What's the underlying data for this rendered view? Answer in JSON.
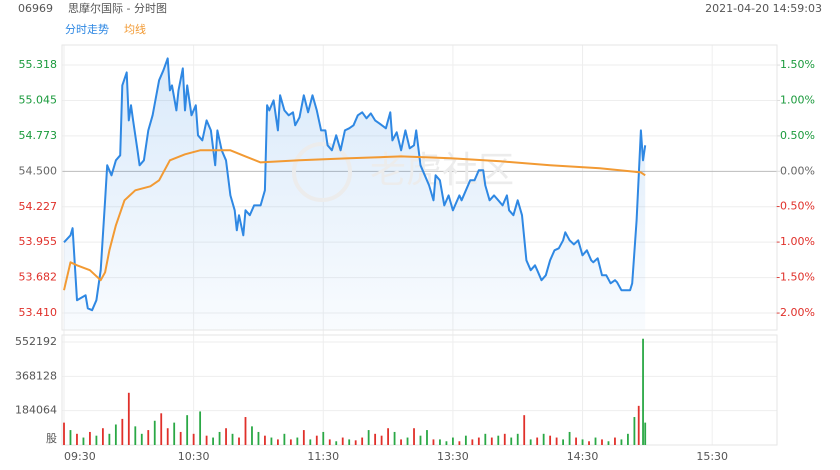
{
  "chart_data": [
    {
      "type": "line",
      "code": "06969",
      "title": "思摩尔国际 - 分时图",
      "timestamp": "2021-04-20 14:59:03",
      "watermark": "老虎社区",
      "xlim": [
        0,
        330
      ],
      "xticks": [
        {
          "value": 0,
          "label": "09:30"
        },
        {
          "value": 60,
          "label": "10:30"
        },
        {
          "value": 120,
          "label": "11:30"
        },
        {
          "value": 180,
          "label": "13:30"
        },
        {
          "value": 240,
          "label": "14:30"
        },
        {
          "value": 300,
          "label": "15:30"
        }
      ],
      "ylim": [
        53.279,
        55.472
      ],
      "yticks": [
        55.318,
        55.045,
        54.773,
        {
          "value": 54.5,
          "label": "54.500"
        },
        54.227,
        53.955,
        53.682,
        {
          "value": 53.41,
          "label": "53.410"
        }
      ],
      "y2lim": [
        -2.24,
        1.783
      ],
      "y2ticks": [
        {
          "value": 1.5,
          "label": "1.50%"
        },
        {
          "value": 1,
          "label": "1.00%"
        },
        {
          "value": 0.5,
          "label": "0.50%"
        },
        {
          "value": 0,
          "label": "0.00%"
        },
        {
          "value": -0.5,
          "label": "-0.50%"
        },
        {
          "value": -1,
          "label": "-1.00%"
        },
        {
          "value": -1.5,
          "label": "-1.50%"
        },
        {
          "value": -2,
          "label": "-2.00%"
        }
      ],
      "grid": true,
      "series": [
        {
          "name": "分时走势",
          "color": "#2f88e3",
          "fill": true,
          "x": [
            0,
            3,
            4,
            6,
            10,
            11,
            13,
            15,
            17,
            19,
            20,
            22,
            24,
            26,
            27,
            29,
            30,
            31,
            32,
            34,
            35,
            37,
            39,
            41,
            44,
            46,
            48,
            49,
            50,
            52,
            53,
            55,
            56,
            57,
            59,
            61,
            62,
            64,
            66,
            68,
            70,
            71,
            73,
            75,
            77,
            79,
            80,
            81,
            83,
            84,
            86,
            88,
            91,
            93,
            94,
            95,
            97,
            99,
            100,
            102,
            104,
            106,
            107,
            109,
            111,
            113,
            115,
            117,
            119,
            121,
            122,
            124,
            126,
            128,
            130,
            132,
            134,
            136,
            138,
            140,
            142,
            144,
            146,
            149,
            151,
            152,
            154,
            156,
            158,
            160,
            162,
            163,
            165,
            167,
            169,
            171,
            172,
            174,
            176,
            178,
            180,
            183,
            184,
            186,
            188,
            190,
            192,
            194,
            195,
            197,
            199,
            201,
            203,
            205,
            206,
            208,
            210,
            212,
            214,
            216,
            218,
            219,
            221,
            223,
            225,
            227,
            229,
            231,
            232,
            234,
            236,
            238,
            240,
            242,
            244,
            245,
            247,
            249,
            251,
            253,
            255,
            256,
            258,
            260,
            262,
            263,
            265,
            267,
            268,
            269
          ],
          "values": [
            53.954,
            54.008,
            54.062,
            53.508,
            53.546,
            53.446,
            53.431,
            53.508,
            53.739,
            54.277,
            54.546,
            54.469,
            54.585,
            54.623,
            55.161,
            55.261,
            54.892,
            55.008,
            54.892,
            54.662,
            54.546,
            54.585,
            54.815,
            54.931,
            55.2,
            55.277,
            55.369,
            55.123,
            55.161,
            54.969,
            55.123,
            55.292,
            54.969,
            55.161,
            54.931,
            55.008,
            54.777,
            54.738,
            54.892,
            54.815,
            54.546,
            54.815,
            54.662,
            54.585,
            54.315,
            54.2,
            54.046,
            54.162,
            54.008,
            54.2,
            54.162,
            54.238,
            54.238,
            54.354,
            55.008,
            54.969,
            55.046,
            54.815,
            55.085,
            54.969,
            54.931,
            54.954,
            54.854,
            54.915,
            55.085,
            54.954,
            55.085,
            54.969,
            54.815,
            54.815,
            54.7,
            54.662,
            54.777,
            54.662,
            54.815,
            54.831,
            54.854,
            54.931,
            54.954,
            54.908,
            54.946,
            54.892,
            54.869,
            54.831,
            54.954,
            54.738,
            54.8,
            54.662,
            54.815,
            54.677,
            54.7,
            54.815,
            54.546,
            54.469,
            54.392,
            54.277,
            54.469,
            54.431,
            54.238,
            54.315,
            54.2,
            54.315,
            54.277,
            54.354,
            54.431,
            54.431,
            54.508,
            54.508,
            54.392,
            54.277,
            54.315,
            54.277,
            54.238,
            54.315,
            54.2,
            54.162,
            54.277,
            54.162,
            53.815,
            53.739,
            53.777,
            53.739,
            53.662,
            53.7,
            53.815,
            53.892,
            53.908,
            53.969,
            54.031,
            53.969,
            53.938,
            53.969,
            53.854,
            53.892,
            53.815,
            53.8,
            53.831,
            53.7,
            53.7,
            53.638,
            53.662,
            53.646,
            53.585,
            53.585,
            53.585,
            53.638,
            54.123,
            54.815,
            54.585,
            54.7
          ]
        },
        {
          "name": "均线",
          "color": "#f29a33",
          "x": [
            0,
            3,
            6,
            12,
            17,
            19,
            21,
            24,
            28,
            33,
            40,
            44,
            49,
            56,
            63,
            77,
            84,
            91,
            109,
            132,
            156,
            179,
            202,
            225,
            248,
            267,
            269
          ],
          "values": [
            53.585,
            53.8,
            53.777,
            53.739,
            53.662,
            53.723,
            53.892,
            54.085,
            54.277,
            54.354,
            54.385,
            54.431,
            54.585,
            54.631,
            54.662,
            54.662,
            54.615,
            54.569,
            54.585,
            54.6,
            54.615,
            54.6,
            54.577,
            54.546,
            54.523,
            54.492,
            54.469
          ]
        }
      ]
    },
    {
      "type": "bar",
      "ylim": [
        0,
        590000
      ],
      "yticks": [
        552192,
        368128,
        184064,
        {
          "value": 0,
          "label": "股"
        }
      ],
      "x": [
        0,
        3,
        6,
        9,
        12,
        15,
        18,
        21,
        24,
        27,
        30,
        33,
        36,
        39,
        42,
        45,
        48,
        51,
        54,
        57,
        60,
        63,
        66,
        69,
        72,
        75,
        78,
        81,
        84,
        87,
        90,
        93,
        96,
        99,
        102,
        105,
        108,
        111,
        114,
        117,
        120,
        123,
        126,
        129,
        132,
        135,
        138,
        141,
        144,
        147,
        150,
        153,
        156,
        159,
        162,
        165,
        168,
        171,
        174,
        177,
        180,
        183,
        186,
        189,
        192,
        195,
        198,
        201,
        204,
        207,
        210,
        213,
        216,
        219,
        222,
        225,
        228,
        231,
        234,
        237,
        240,
        243,
        246,
        249,
        252,
        255,
        258,
        261,
        264,
        266,
        268,
        269
      ],
      "values": [
        120000,
        80000,
        60000,
        40000,
        70000,
        50000,
        90000,
        60000,
        110000,
        140000,
        280000,
        100000,
        60000,
        80000,
        130000,
        170000,
        90000,
        120000,
        70000,
        160000,
        60000,
        180000,
        50000,
        40000,
        70000,
        90000,
        60000,
        40000,
        150000,
        100000,
        70000,
        50000,
        40000,
        30000,
        60000,
        30000,
        40000,
        80000,
        30000,
        50000,
        70000,
        30000,
        20000,
        40000,
        30000,
        25000,
        40000,
        80000,
        60000,
        50000,
        90000,
        70000,
        30000,
        40000,
        90000,
        50000,
        80000,
        30000,
        30000,
        20000,
        40000,
        20000,
        50000,
        30000,
        40000,
        60000,
        40000,
        50000,
        60000,
        40000,
        60000,
        160000,
        30000,
        40000,
        60000,
        50000,
        40000,
        30000,
        70000,
        40000,
        30000,
        20000,
        40000,
        30000,
        20000,
        40000,
        30000,
        60000,
        150000,
        210000,
        570000,
        120000
      ],
      "colors": [
        "#e0302a",
        "#2aa845",
        "#e0302a",
        "#2aa845",
        "#e0302a",
        "#2aa845",
        "#e0302a",
        "#2aa845",
        "#2aa845",
        "#e0302a",
        "#e0302a",
        "#2aa845",
        "#2aa845",
        "#e0302a",
        "#2aa845",
        "#e0302a",
        "#e0302a",
        "#2aa845",
        "#e0302a",
        "#2aa845",
        "#e0302a",
        "#2aa845",
        "#e0302a",
        "#2aa845",
        "#2aa845",
        "#e0302a",
        "#2aa845",
        "#e0302a",
        "#e0302a",
        "#2aa845",
        "#2aa845",
        "#e0302a",
        "#2aa845",
        "#e0302a",
        "#2aa845",
        "#e0302a",
        "#2aa845",
        "#e0302a",
        "#2aa845",
        "#e0302a",
        "#2aa845",
        "#e0302a",
        "#2aa845",
        "#e0302a",
        "#2aa845",
        "#e0302a",
        "#e0302a",
        "#2aa845",
        "#e0302a",
        "#e0302a",
        "#e0302a",
        "#2aa845",
        "#e0302a",
        "#2aa845",
        "#e0302a",
        "#2aa845",
        "#2aa845",
        "#e0302a",
        "#2aa845",
        "#2aa845",
        "#2aa845",
        "#e0302a",
        "#2aa845",
        "#e0302a",
        "#e0302a",
        "#2aa845",
        "#e0302a",
        "#2aa845",
        "#e0302a",
        "#2aa845",
        "#2aa845",
        "#e0302a",
        "#2aa845",
        "#e0302a",
        "#2aa845",
        "#e0302a",
        "#e0302a",
        "#2aa845",
        "#2aa845",
        "#e0302a",
        "#2aa845",
        "#e0302a",
        "#2aa845",
        "#e0302a",
        "#2aa845",
        "#e0302a",
        "#2aa845",
        "#2aa845",
        "#2aa845",
        "#e0302a",
        "#2aa845",
        "#2aa845"
      ]
    }
  ]
}
